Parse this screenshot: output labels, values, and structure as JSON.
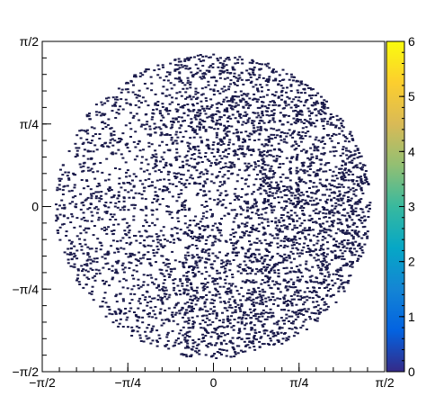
{
  "chart_data": {
    "type": "scatter",
    "title": "",
    "xlabel": "",
    "ylabel": "",
    "xlim": [
      -1.5708,
      1.5708
    ],
    "ylim": [
      -1.5708,
      1.5708
    ],
    "x_ticks": [
      {
        "value": -1.5708,
        "label": "−π/2"
      },
      {
        "value": -0.7854,
        "label": "−π/4"
      },
      {
        "value": 0,
        "label": "0"
      },
      {
        "value": 0.7854,
        "label": "π/4"
      },
      {
        "value": 1.5708,
        "label": "π/2"
      }
    ],
    "y_ticks": [
      {
        "value": -1.5708,
        "label": "−π/2"
      },
      {
        "value": -0.7854,
        "label": "−π/4"
      },
      {
        "value": 0,
        "label": "0"
      },
      {
        "value": 0.7854,
        "label": "π/4"
      },
      {
        "value": 1.5708,
        "label": "π/2"
      }
    ],
    "colorbar": {
      "range": [
        0,
        6
      ],
      "tick_labels": [
        "0",
        "1",
        "2",
        "3",
        "4",
        "5",
        "6"
      ],
      "palette": [
        "#352a87",
        "#0363e1",
        "#1485d4",
        "#06a7c6",
        "#38b99e",
        "#92bf73",
        "#d9ba56",
        "#fcce2e",
        "#f9fb0e"
      ]
    },
    "point_color": "#1a1a4a",
    "distribution": {
      "shape": "disk",
      "radius": 1.45,
      "center": [
        0,
        0
      ],
      "point_count": 5200,
      "denser_region": "right-half",
      "sparse_center": true
    }
  }
}
